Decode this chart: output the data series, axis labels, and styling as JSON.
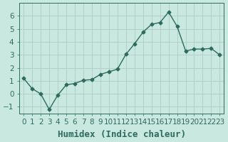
{
  "x": [
    0,
    1,
    2,
    3,
    4,
    5,
    6,
    7,
    8,
    9,
    10,
    11,
    12,
    13,
    14,
    15,
    16,
    17,
    18,
    19,
    20,
    21,
    22,
    23
  ],
  "y": [
    1.2,
    0.4,
    0.0,
    -1.2,
    -0.1,
    0.7,
    0.8,
    1.05,
    1.1,
    1.5,
    1.7,
    1.9,
    3.05,
    3.85,
    4.75,
    5.35,
    5.5,
    6.3,
    5.2,
    3.3,
    3.45,
    3.45,
    3.5,
    3.0
  ],
  "xlabel": "Humidex (Indice chaleur)",
  "line_color": "#2e6b5e",
  "bg_color": "#c8e8e0",
  "grid_color": "#b0d0c8",
  "tick_color": "#2e6b5e",
  "ylim": [
    -1.5,
    7
  ],
  "yticks": [
    -1,
    0,
    1,
    2,
    3,
    4,
    5,
    6
  ],
  "xticks": [
    0,
    1,
    2,
    3,
    4,
    5,
    6,
    7,
    8,
    9,
    10,
    11,
    12,
    13,
    14,
    15,
    16,
    17,
    18,
    19,
    20,
    21,
    22,
    23
  ],
  "xlabel_fontsize": 9,
  "tick_fontsize": 7.5
}
